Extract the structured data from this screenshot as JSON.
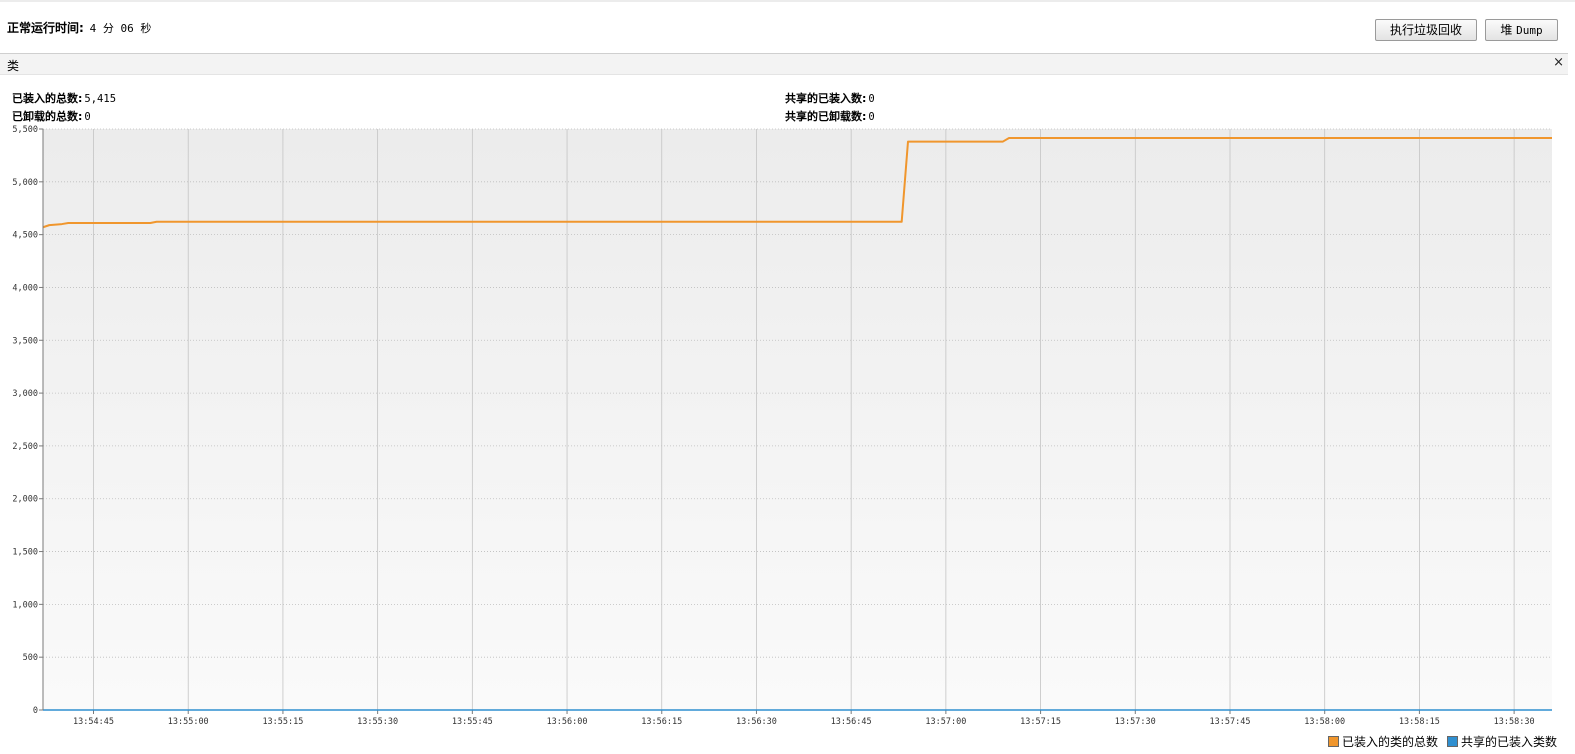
{
  "header": {
    "uptime_label": "正常运行时间:",
    "uptime_value": "4 分 06 秒",
    "gc_button": "执行垃圾回收",
    "dump_button_prefix": "堆",
    "dump_button_suffix": "Dump"
  },
  "tab": {
    "title": "类",
    "close": "×"
  },
  "stats": {
    "loaded_total_label": "已装入的总数:",
    "loaded_total_value": "5,415",
    "unloaded_total_label": "已卸载的总数:",
    "unloaded_total_value": "0",
    "shared_loaded_label": "共享的已装入数:",
    "shared_loaded_value": "0",
    "shared_unloaded_label": "共享的已卸载数:",
    "shared_unloaded_value": "0"
  },
  "chart_data": {
    "type": "line",
    "xlabel": "",
    "ylabel": "",
    "ylim": [
      0,
      5500
    ],
    "xlim": [
      "13:54:37",
      "13:58:36"
    ],
    "y_ticks": [
      "0",
      "500",
      "1,000",
      "1,500",
      "2,000",
      "2,500",
      "3,000",
      "3,500",
      "4,000",
      "4,500",
      "5,000",
      "5,500"
    ],
    "x_ticks": [
      "13:54:45",
      "13:55:00",
      "13:55:15",
      "13:55:30",
      "13:55:45",
      "13:56:00",
      "13:56:15",
      "13:56:30",
      "13:56:45",
      "13:57:00",
      "13:57:15",
      "13:57:30",
      "13:57:45",
      "13:58:00",
      "13:58:15",
      "13:58:30"
    ],
    "grid": true,
    "legend_position": "bottom-right",
    "series": [
      {
        "name": "已装入的类的总数",
        "color": "#f0962d",
        "points": [
          [
            "13:54:37",
            4570
          ],
          [
            "13:54:38",
            4590
          ],
          [
            "13:54:40",
            4600
          ],
          [
            "13:54:41",
            4610
          ],
          [
            "13:54:54",
            4610
          ],
          [
            "13:54:55",
            4622
          ],
          [
            "13:56:53",
            4622
          ],
          [
            "13:56:54",
            5380
          ],
          [
            "13:57:09",
            5380
          ],
          [
            "13:57:10",
            5415
          ],
          [
            "13:58:36",
            5415
          ]
        ]
      },
      {
        "name": "共享的已装入类数",
        "color": "#2f8fd0",
        "points": [
          [
            "13:54:37",
            0
          ],
          [
            "13:58:36",
            0
          ]
        ]
      }
    ]
  }
}
